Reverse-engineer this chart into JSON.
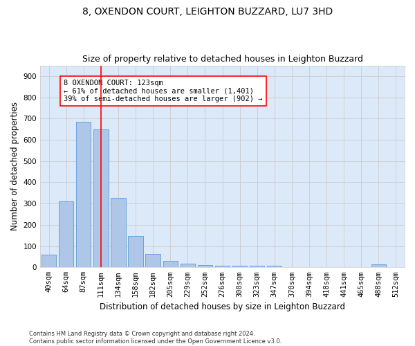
{
  "title_line1": "8, OXENDON COURT, LEIGHTON BUZZARD, LU7 3HD",
  "title_line2": "Size of property relative to detached houses in Leighton Buzzard",
  "xlabel": "Distribution of detached houses by size in Leighton Buzzard",
  "ylabel": "Number of detached properties",
  "footnote": "Contains HM Land Registry data © Crown copyright and database right 2024.\nContains public sector information licensed under the Open Government Licence v3.0.",
  "bin_labels": [
    "40sqm",
    "64sqm",
    "87sqm",
    "111sqm",
    "134sqm",
    "158sqm",
    "182sqm",
    "205sqm",
    "229sqm",
    "252sqm",
    "276sqm",
    "300sqm",
    "323sqm",
    "347sqm",
    "370sqm",
    "394sqm",
    "418sqm",
    "441sqm",
    "465sqm",
    "488sqm",
    "512sqm"
  ],
  "bar_values": [
    60,
    310,
    685,
    648,
    328,
    148,
    62,
    30,
    18,
    11,
    8,
    7,
    7,
    7,
    0,
    0,
    0,
    0,
    0,
    15,
    0
  ],
  "bar_color": "#aec6e8",
  "bar_edge_color": "#5b9bd5",
  "vline_color": "red",
  "annotation_text": "8 OXENDON COURT: 123sqm\n← 61% of detached houses are smaller (1,401)\n39% of semi-detached houses are larger (902) →",
  "annotation_box_color": "white",
  "annotation_box_edgecolor": "red",
  "ylim": [
    0,
    950
  ],
  "yticks": [
    0,
    100,
    200,
    300,
    400,
    500,
    600,
    700,
    800,
    900
  ],
  "grid_color": "#cccccc",
  "bg_color": "#dce9f8",
  "title_fontsize": 10,
  "subtitle_fontsize": 9,
  "axis_label_fontsize": 8.5,
  "tick_fontsize": 7.5,
  "annot_fontsize": 7.5,
  "footnote_fontsize": 6
}
